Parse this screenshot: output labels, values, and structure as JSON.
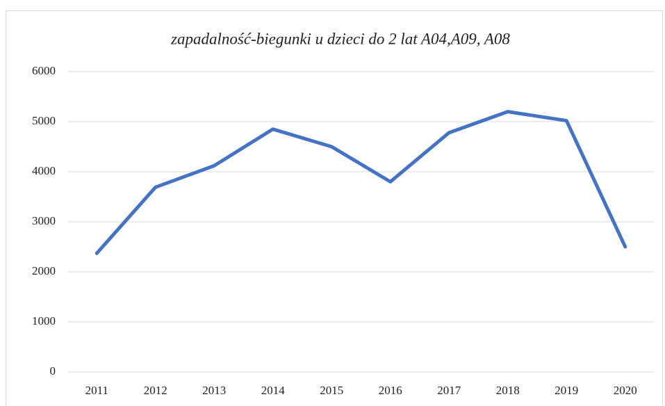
{
  "chart_data": {
    "type": "line",
    "title": "zapadalność-biegunki u dzieci do 2 lat A04,A09, A08",
    "categories": [
      "2011",
      "2012",
      "2013",
      "2014",
      "2015",
      "2016",
      "2017",
      "2018",
      "2019",
      "2020"
    ],
    "values": [
      2370,
      3690,
      4120,
      4850,
      4500,
      3800,
      4780,
      5200,
      5020,
      2500
    ],
    "color": "#4472c4",
    "ylim": [
      0,
      6000
    ],
    "yticks": [
      0,
      1000,
      2000,
      3000,
      4000,
      5000,
      6000
    ],
    "grid": true
  }
}
